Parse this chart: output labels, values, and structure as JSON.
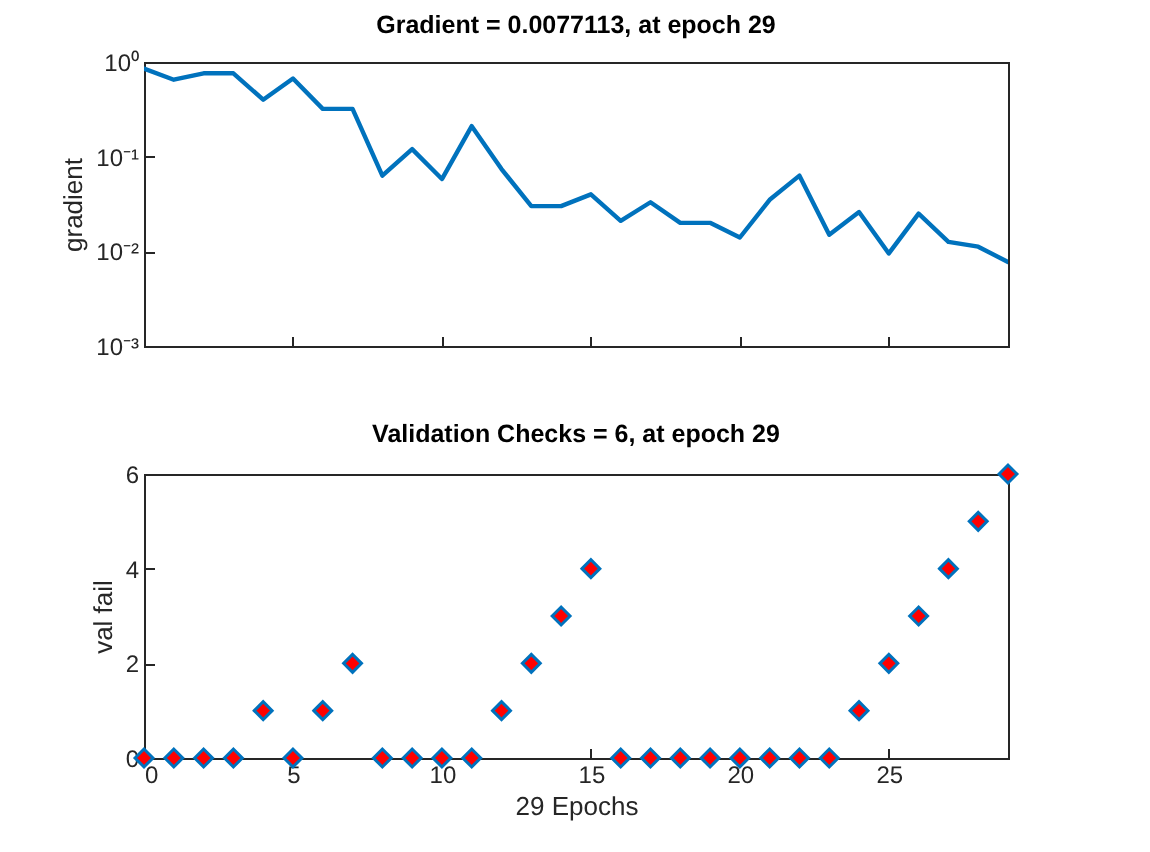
{
  "chart_data": [
    {
      "type": "line",
      "title": "Gradient = 0.0077113, at epoch 29",
      "ylabel": "gradient",
      "log": "y",
      "tick_labels": "y",
      "line_style": "solid",
      "x": [
        0,
        1,
        2,
        3,
        4,
        5,
        6,
        7,
        8,
        9,
        10,
        11,
        12,
        13,
        14,
        15,
        16,
        17,
        18,
        19,
        20,
        21,
        22,
        23,
        24,
        25,
        26,
        27,
        28,
        29
      ],
      "series": [
        {
          "color": "#0072bd",
          "values": [
            0.85,
            0.65,
            0.76,
            0.76,
            0.4,
            0.67,
            0.32,
            0.32,
            0.063,
            0.12,
            0.058,
            0.21,
            0.074,
            0.03,
            0.03,
            0.04,
            0.021,
            0.033,
            0.02,
            0.02,
            0.014,
            0.035,
            0.063,
            0.015,
            0.026,
            0.0095,
            0.025,
            0.0126,
            0.0112,
            0.0077113
          ]
        }
      ],
      "xlim": [
        0,
        29
      ],
      "xticks": [
        0,
        5,
        10,
        15,
        20,
        25
      ],
      "ylim": [
        0.001,
        1
      ],
      "yticks": [
        {
          "value": 0.001,
          "label": "10⁻³"
        },
        {
          "value": 0.01,
          "label": "10⁻²"
        },
        {
          "value": 0.1,
          "label": "10⁻¹"
        },
        {
          "value": 1,
          "label": "10⁰"
        }
      ]
    },
    {
      "type": "scatter",
      "title": "Validation Checks = 6, at epoch 29",
      "xlabel": "29 Epochs",
      "ylabel": "val fail",
      "marker": "diamond",
      "x": [
        0,
        1,
        2,
        3,
        4,
        5,
        6,
        7,
        8,
        9,
        10,
        11,
        12,
        13,
        14,
        15,
        16,
        17,
        18,
        19,
        20,
        21,
        22,
        23,
        24,
        25,
        26,
        27,
        28,
        29
      ],
      "series": [
        {
          "color": "#ff0000",
          "values": [
            0,
            0,
            0,
            0,
            1,
            0,
            1,
            2,
            0,
            0,
            0,
            0,
            1,
            2,
            3,
            4,
            0,
            0,
            0,
            0,
            0,
            0,
            0,
            0,
            1,
            2,
            3,
            4,
            5,
            6
          ]
        }
      ],
      "xlim": [
        0,
        29
      ],
      "xticks": [
        0,
        5,
        10,
        15,
        20,
        25
      ],
      "ylim": [
        0,
        6
      ],
      "yticks": [
        0,
        2,
        4,
        6
      ]
    }
  ]
}
